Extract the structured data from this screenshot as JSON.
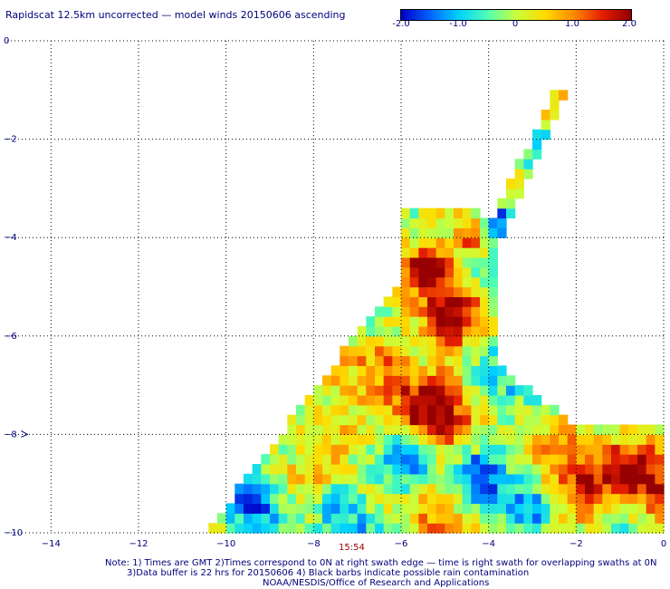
{
  "title": "Rapidscat 12.5km uncorrected — model winds 20150606 ascending",
  "colorbar": {
    "range": [
      -2.0,
      2.0
    ],
    "tick_labels": [
      "-2.0",
      "-1.0",
      "0",
      "1.0",
      "2.0"
    ],
    "colors": [
      "#0000c8",
      "#0064ff",
      "#00d2ff",
      "#50ffb4",
      "#c8ff3c",
      "#ffdc00",
      "#ff8c00",
      "#e61e00",
      "#960000"
    ]
  },
  "time_label": "15:54",
  "notes": [
    "Note: 1) Times are GMT 2)Times correspond to 0N at right swath edge — time is right swath for overlapping swaths at 0N",
    "3)Data buffer is 22 hrs for 20150606 4) Black barbs indicate possible rain contamination",
    "NOAA/NESDIS/Office of Research and Applications"
  ],
  "chart_data": {
    "type": "heatmap",
    "title": "Rapidscat 12.5km uncorrected — model winds 20150606 ascending",
    "xlim": [
      -15,
      0
    ],
    "ylim": [
      -10,
      0
    ],
    "x_ticks": [
      -14,
      -12,
      -10,
      -8,
      -6,
      -4,
      -2,
      0
    ],
    "y_ticks": [
      0,
      -2,
      -4,
      -6,
      -8,
      -10
    ],
    "x_tick_labels": [
      "−14",
      "−12",
      "−10",
      "−8",
      "−6",
      "−4",
      "−2",
      "0"
    ],
    "y_tick_labels": [
      "0",
      "−2",
      "−4",
      "−6",
      "−8",
      "−10"
    ],
    "grid": "dotted",
    "cell_size_deg": 0.2,
    "value_range": [
      -2.0,
      2.0
    ],
    "swath_polygon": [
      [
        -10.5,
        -10
      ],
      [
        -6.1,
        -4.9
      ],
      [
        -6.0,
        -3.5
      ],
      [
        -5.0,
        -3.4
      ],
      [
        -3.9,
        -3.55
      ],
      [
        -2.45,
        -1.0
      ],
      [
        -2.15,
        -1.0
      ],
      [
        -3.8,
        -4.1
      ],
      [
        -3.8,
        -6.6
      ],
      [
        -2.0,
        -7.8
      ],
      [
        0,
        -7.8
      ],
      [
        0,
        -10
      ]
    ],
    "patches": [
      {
        "x": -5.4,
        "y": -7.5,
        "r": 0.9,
        "v": 1.5
      },
      {
        "x": -6.5,
        "y": -6.2,
        "r": 0.7,
        "v": 1.2
      },
      {
        "x": -4.8,
        "y": -5.7,
        "r": 0.6,
        "v": 1.9
      },
      {
        "x": -5.4,
        "y": -4.6,
        "r": 0.5,
        "v": 1.6
      },
      {
        "x": -4.4,
        "y": -4.0,
        "r": 0.4,
        "v": 1.7
      },
      {
        "x": -0.6,
        "y": -8.6,
        "r": 0.9,
        "v": 2.2
      },
      {
        "x": -1.8,
        "y": -9.3,
        "r": 0.5,
        "v": 1.3
      },
      {
        "x": -7.0,
        "y": -7.8,
        "r": 0.7,
        "v": 1.2
      },
      {
        "x": -5.8,
        "y": -8.6,
        "r": 0.6,
        "v": -1.4
      },
      {
        "x": -4.3,
        "y": -8.8,
        "r": 0.5,
        "v": -1.2
      },
      {
        "x": -7.5,
        "y": -9.4,
        "r": 0.6,
        "v": -1.0
      },
      {
        "x": -8.6,
        "y": -8.3,
        "r": 0.5,
        "v": -0.7
      },
      {
        "x": -9.2,
        "y": -9.6,
        "r": 0.6,
        "v": -0.8
      },
      {
        "x": -3.0,
        "y": -9.6,
        "r": 0.5,
        "v": -0.9
      },
      {
        "x": -5.6,
        "y": -6.7,
        "r": 0.4,
        "v": -0.7
      },
      {
        "x": -2.8,
        "y": -1.9,
        "r": 0.5,
        "v": -0.8
      },
      {
        "x": -3.7,
        "y": -3.6,
        "r": 0.3,
        "v": -1.6
      },
      {
        "x": -3.4,
        "y": -2.7,
        "r": 0.35,
        "v": 0.9
      },
      {
        "x": -6.3,
        "y": -5.1,
        "r": 0.4,
        "v": 0.3
      }
    ],
    "barbs": [
      {
        "x": -14.6,
        "y": -8.0
      }
    ]
  }
}
